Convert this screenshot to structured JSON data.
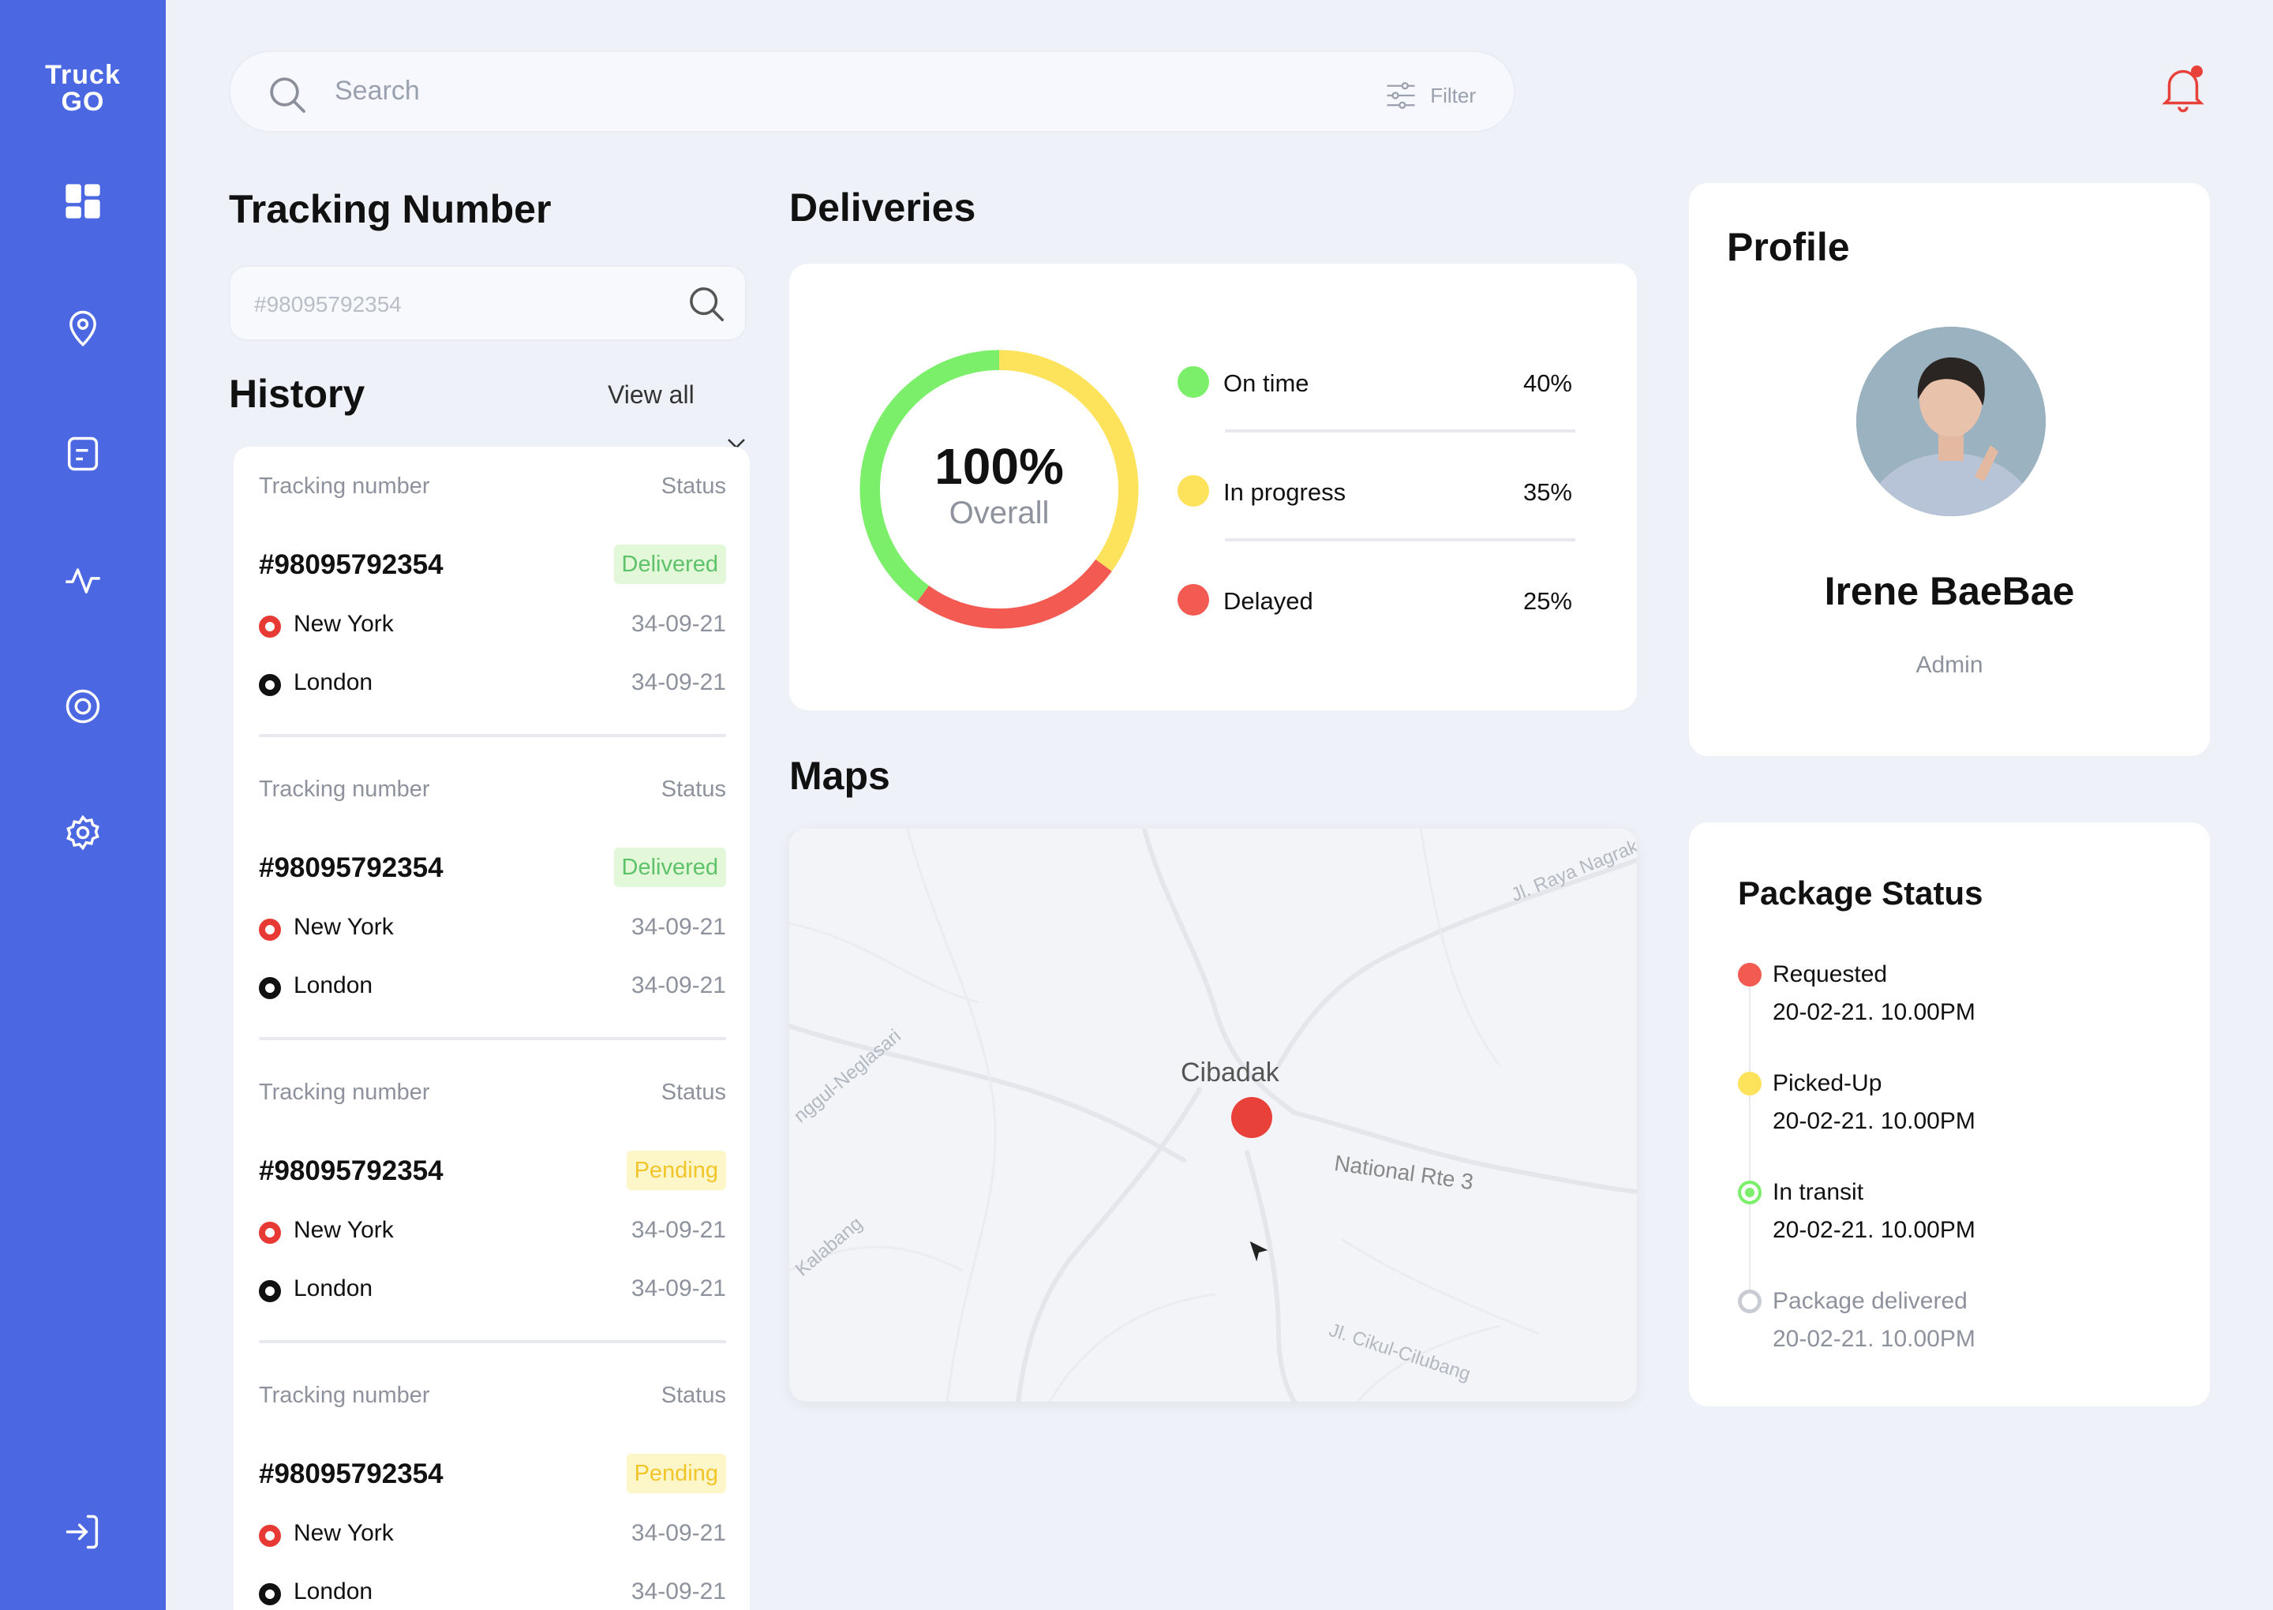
{
  "app": {
    "logo_line1": "Truck",
    "logo_line2": "GO"
  },
  "sidebar": {
    "items": [
      "dashboard",
      "location",
      "documents",
      "activity",
      "target",
      "settings"
    ],
    "logout": "logout"
  },
  "search": {
    "placeholder": "Search",
    "filter_label": "Filter"
  },
  "tracking": {
    "title": "Tracking Number",
    "placeholder": "#98095792354"
  },
  "history": {
    "title": "History",
    "view_all": "View all",
    "cards": [
      {
        "label": "Tracking number",
        "status_label": "Status",
        "number": "#98095792354",
        "status": "Delivered",
        "from": "New York",
        "from_date": "34-09-21",
        "to": "London",
        "to_date": "34-09-21"
      },
      {
        "label": "Tracking number",
        "status_label": "Status",
        "number": "#98095792354",
        "status": "Delivered",
        "from": "New York",
        "from_date": "34-09-21",
        "to": "London",
        "to_date": "34-09-21"
      },
      {
        "label": "Tracking number",
        "status_label": "Status",
        "number": "#98095792354",
        "status": "Pending",
        "from": "New York",
        "from_date": "34-09-21",
        "to": "London",
        "to_date": "34-09-21"
      },
      {
        "label": "Tracking number",
        "status_label": "Status",
        "number": "#98095792354",
        "status": "Pending",
        "from": "New York",
        "from_date": "34-09-21",
        "to": "London",
        "to_date": "34-09-21"
      }
    ]
  },
  "deliveries": {
    "title": "Deliveries",
    "overall_value": "100%",
    "overall_label": "Overall",
    "legend": [
      {
        "name": "On time",
        "value": "40%",
        "color": "#7cef6a"
      },
      {
        "name": "In progress",
        "value": "35%",
        "color": "#fde25c"
      },
      {
        "name": "Delayed",
        "value": "25%",
        "color": "#f25a52"
      }
    ]
  },
  "maps": {
    "title": "Maps",
    "city": "Cibadak",
    "road_labels": [
      "Jl. Raya Nagrak",
      "nggul-Neglasari",
      "National Rte 3",
      "Kalabang",
      "Jl. Cikul-Cilubang"
    ]
  },
  "profile": {
    "title": "Profile",
    "name": "Irene BaeBae",
    "role": "Admin"
  },
  "package_status": {
    "title": "Package Status",
    "steps": [
      {
        "name": "Requested",
        "time": "20-02-21. 10.00PM",
        "color": "#f25a52"
      },
      {
        "name": "Picked-Up",
        "time": "20-02-21. 10.00PM",
        "color": "#fde25c"
      },
      {
        "name": "In transit",
        "time": "20-02-21. 10.00PM",
        "color": "#7cef6a"
      },
      {
        "name": "Package delivered",
        "time": "20-02-21. 10.00PM",
        "color": "#c9ccd3"
      }
    ]
  },
  "colors": {
    "sidebar": "#4b68e2",
    "delivered_bg": "#e2f8d8",
    "pending_bg": "#fdf6c9",
    "alert": "#e8413a"
  }
}
